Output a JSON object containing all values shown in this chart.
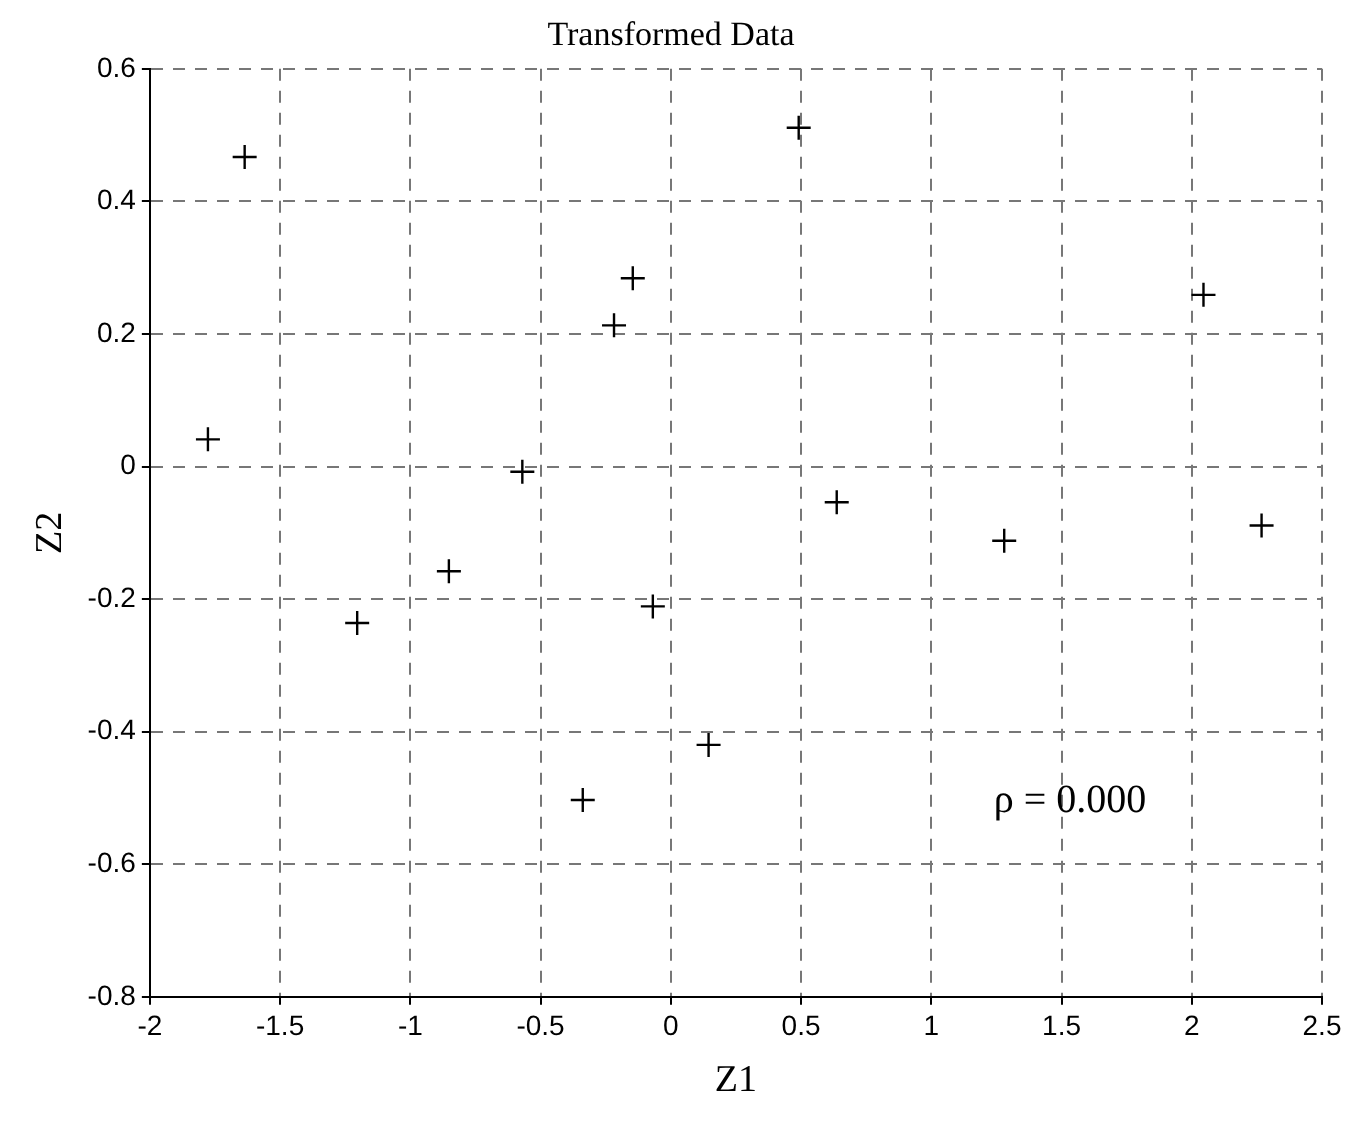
{
  "chart_data": {
    "type": "scatter",
    "title": "Transformed Data",
    "xlabel": "Z1",
    "ylabel": "Z2",
    "x": [
      -1.636,
      -1.777,
      -0.146,
      -0.218,
      -0.57,
      -0.852,
      0.491,
      2.045,
      0.637,
      1.28,
      2.268,
      -1.204,
      -0.069,
      -0.338,
      0.145
    ],
    "values": [
      0.467,
      0.041,
      0.284,
      0.213,
      -0.008,
      -0.158,
      0.511,
      0.259,
      -0.054,
      -0.112,
      -0.089,
      -0.236,
      -0.211,
      -0.503,
      -0.42
    ],
    "color": "#000000",
    "marker": "cross",
    "grid": true,
    "xlim": [
      -2,
      2.5
    ],
    "xticks": [
      -2,
      -1.5,
      -1,
      -0.5,
      0,
      0.5,
      1,
      1.5,
      2,
      2.5
    ],
    "ylim": [
      -0.8,
      0.6
    ],
    "yticks": [
      -0.8,
      -0.6,
      -0.4,
      -0.2,
      0,
      0.2,
      0.4,
      0.6
    ],
    "annotations": [
      "ρ = 0.000"
    ]
  }
}
